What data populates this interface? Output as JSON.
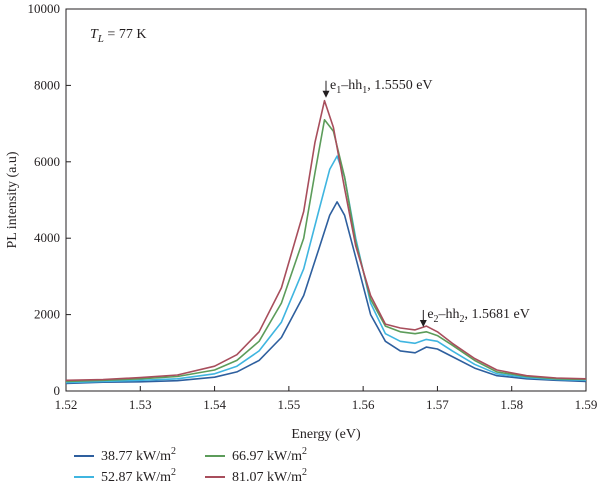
{
  "chart_data": {
    "type": "line",
    "xlabel": "Energy (eV)",
    "ylabel": "PL intensity (a.u)",
    "xlim": [
      1.52,
      1.59
    ],
    "ylim": [
      0,
      10000
    ],
    "xticks": [
      "1.52",
      "1.53",
      "1.54",
      "1.55",
      "1.56",
      "1.57",
      "1.58",
      "1.59"
    ],
    "yticks": [
      "0",
      "2000",
      "4000",
      "6000",
      "8000",
      "10000"
    ],
    "grid": false,
    "legend_position": "bottom",
    "condition_label": {
      "prefix": "T",
      "sub": "L",
      "suffix": " = 77 K"
    },
    "annotations": [
      {
        "pre": "e",
        "sub1": "1",
        "mid": "–hh",
        "sub2": "1",
        "post": ", 1.5550 eV",
        "x": 1.555,
        "y": 7650
      },
      {
        "pre": "e",
        "sub1": "2",
        "mid": "–hh",
        "sub2": "2",
        "post": ", 1.5681 eV",
        "x": 1.5681,
        "y": 1650
      }
    ],
    "series": [
      {
        "name": "38.77 kW/m",
        "sup": "2",
        "color": "#2e5f9e",
        "points": [
          [
            1.52,
            200
          ],
          [
            1.525,
            230
          ],
          [
            1.53,
            240
          ],
          [
            1.535,
            270
          ],
          [
            1.54,
            360
          ],
          [
            1.543,
            500
          ],
          [
            1.546,
            800
          ],
          [
            1.549,
            1400
          ],
          [
            1.552,
            2500
          ],
          [
            1.554,
            3700
          ],
          [
            1.5555,
            4600
          ],
          [
            1.5565,
            4950
          ],
          [
            1.5575,
            4600
          ],
          [
            1.559,
            3500
          ],
          [
            1.561,
            2000
          ],
          [
            1.563,
            1300
          ],
          [
            1.565,
            1050
          ],
          [
            1.567,
            1000
          ],
          [
            1.5685,
            1150
          ],
          [
            1.57,
            1100
          ],
          [
            1.572,
            900
          ],
          [
            1.575,
            600
          ],
          [
            1.578,
            400
          ],
          [
            1.582,
            320
          ],
          [
            1.586,
            280
          ],
          [
            1.59,
            250
          ]
        ]
      },
      {
        "name": "52.87 kW/m",
        "sup": "2",
        "color": "#3fb5e0",
        "points": [
          [
            1.52,
            220
          ],
          [
            1.525,
            250
          ],
          [
            1.53,
            280
          ],
          [
            1.535,
            320
          ],
          [
            1.54,
            450
          ],
          [
            1.543,
            650
          ],
          [
            1.546,
            1050
          ],
          [
            1.549,
            1800
          ],
          [
            1.552,
            3200
          ],
          [
            1.554,
            4700
          ],
          [
            1.5555,
            5800
          ],
          [
            1.5565,
            6150
          ],
          [
            1.5575,
            5600
          ],
          [
            1.559,
            4000
          ],
          [
            1.561,
            2300
          ],
          [
            1.563,
            1500
          ],
          [
            1.565,
            1300
          ],
          [
            1.567,
            1250
          ],
          [
            1.5685,
            1350
          ],
          [
            1.57,
            1300
          ],
          [
            1.572,
            1050
          ],
          [
            1.575,
            700
          ],
          [
            1.578,
            450
          ],
          [
            1.582,
            350
          ],
          [
            1.586,
            300
          ],
          [
            1.59,
            280
          ]
        ]
      },
      {
        "name": "66.97 kW/m",
        "sup": "2",
        "color": "#5c9c5a",
        "points": [
          [
            1.52,
            250
          ],
          [
            1.525,
            280
          ],
          [
            1.53,
            320
          ],
          [
            1.535,
            380
          ],
          [
            1.54,
            550
          ],
          [
            1.543,
            800
          ],
          [
            1.546,
            1300
          ],
          [
            1.549,
            2300
          ],
          [
            1.552,
            4000
          ],
          [
            1.5535,
            5700
          ],
          [
            1.5548,
            7100
          ],
          [
            1.556,
            6800
          ],
          [
            1.5575,
            5600
          ],
          [
            1.559,
            3900
          ],
          [
            1.561,
            2400
          ],
          [
            1.563,
            1700
          ],
          [
            1.565,
            1550
          ],
          [
            1.567,
            1500
          ],
          [
            1.5685,
            1550
          ],
          [
            1.57,
            1450
          ],
          [
            1.572,
            1200
          ],
          [
            1.575,
            800
          ],
          [
            1.578,
            500
          ],
          [
            1.582,
            380
          ],
          [
            1.586,
            320
          ],
          [
            1.59,
            300
          ]
        ]
      },
      {
        "name": "81.07 kW/m",
        "sup": "2",
        "color": "#a84e5c",
        "points": [
          [
            1.52,
            280
          ],
          [
            1.525,
            300
          ],
          [
            1.53,
            350
          ],
          [
            1.535,
            420
          ],
          [
            1.54,
            650
          ],
          [
            1.543,
            950
          ],
          [
            1.546,
            1550
          ],
          [
            1.549,
            2700
          ],
          [
            1.552,
            4700
          ],
          [
            1.5535,
            6500
          ],
          [
            1.5548,
            7600
          ],
          [
            1.556,
            6900
          ],
          [
            1.5575,
            5300
          ],
          [
            1.559,
            3800
          ],
          [
            1.561,
            2500
          ],
          [
            1.563,
            1750
          ],
          [
            1.565,
            1650
          ],
          [
            1.567,
            1600
          ],
          [
            1.5685,
            1700
          ],
          [
            1.57,
            1550
          ],
          [
            1.572,
            1250
          ],
          [
            1.575,
            850
          ],
          [
            1.578,
            550
          ],
          [
            1.582,
            400
          ],
          [
            1.586,
            340
          ],
          [
            1.59,
            320
          ]
        ]
      }
    ]
  }
}
